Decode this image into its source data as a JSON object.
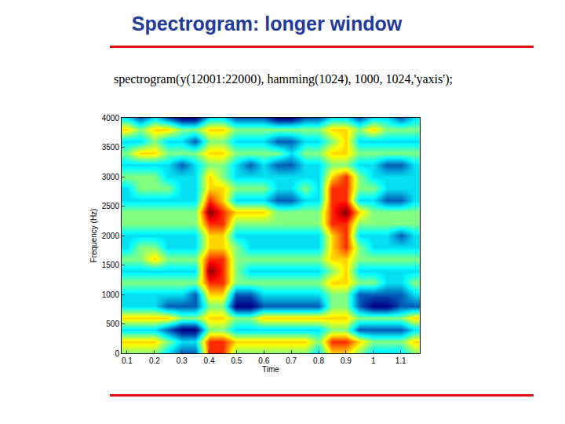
{
  "slide": {
    "title": "Spectrogram: longer window",
    "caption": "spectrogram(y(12001:22000), hamming(1024), 1000, 1024,'yaxis');"
  },
  "chart_data": {
    "type": "heatmap",
    "x_label": "Time",
    "y_label": "Frequency (Hz)",
    "xlim": [
      0.08,
      1.17
    ],
    "xticks": [
      0.1,
      0.2,
      0.3,
      0.4,
      0.5,
      0.6,
      0.7,
      0.8,
      0.9,
      1,
      1.1
    ],
    "ylim": [
      0,
      4000
    ],
    "yticks": [
      0,
      500,
      1000,
      1500,
      2000,
      2500,
      3000,
      3500,
      4000
    ],
    "x": [
      0.1,
      0.15,
      0.2,
      0.25,
      0.3,
      0.35,
      0.4,
      0.45,
      0.5,
      0.55,
      0.6,
      0.65,
      0.7,
      0.75,
      0.8,
      0.85,
      0.9,
      0.95,
      1.0,
      1.05,
      1.1,
      1.15
    ],
    "y": [
      0,
      200,
      400,
      600,
      800,
      1000,
      1200,
      1400,
      1600,
      1800,
      2000,
      2200,
      2400,
      2600,
      2800,
      3000,
      3200,
      3400,
      3600,
      3800,
      4000
    ],
    "cells": [
      [
        7,
        7,
        7,
        6,
        5,
        5,
        9,
        9,
        7,
        7,
        7,
        7,
        7,
        7,
        6,
        8,
        8,
        7,
        6,
        6,
        6,
        7
      ],
      [
        8,
        8,
        8,
        7,
        6,
        6,
        9,
        9,
        8,
        8,
        8,
        8,
        8,
        8,
        7,
        9,
        9,
        8,
        7,
        7,
        7,
        8
      ],
      [
        6,
        6,
        6,
        5,
        4,
        4,
        7,
        7,
        6,
        6,
        6,
        6,
        6,
        6,
        6,
        7,
        7,
        5,
        5,
        5,
        5,
        6
      ],
      [
        8,
        8,
        8,
        8,
        7,
        7,
        8,
        8,
        7,
        7,
        8,
        8,
        8,
        8,
        8,
        8,
        8,
        7,
        7,
        7,
        7,
        8
      ],
      [
        6,
        6,
        6,
        5,
        5,
        5,
        7,
        7,
        4,
        4,
        5,
        5,
        5,
        5,
        5,
        7,
        7,
        5,
        4,
        4,
        5,
        5
      ],
      [
        6,
        6,
        6,
        6,
        6,
        5,
        8,
        8,
        5,
        5,
        6,
        6,
        6,
        6,
        6,
        7,
        7,
        5,
        5,
        5,
        5,
        6
      ],
      [
        7,
        7,
        7,
        7,
        7,
        7,
        9,
        9,
        7,
        7,
        7,
        7,
        7,
        7,
        7,
        8,
        8,
        7,
        7,
        6,
        6,
        7
      ],
      [
        6,
        6,
        6,
        6,
        6,
        6,
        10,
        9,
        7,
        6,
        6,
        6,
        6,
        6,
        6,
        7,
        8,
        6,
        6,
        6,
        6,
        6
      ],
      [
        7,
        7,
        8,
        7,
        7,
        7,
        9,
        9,
        7,
        7,
        7,
        7,
        7,
        7,
        7,
        8,
        8,
        7,
        7,
        7,
        7,
        7
      ],
      [
        6,
        7,
        7,
        6,
        6,
        6,
        8,
        8,
        7,
        6,
        6,
        6,
        6,
        6,
        6,
        8,
        9,
        7,
        6,
        6,
        6,
        6
      ],
      [
        6,
        6,
        6,
        6,
        6,
        6,
        8,
        8,
        6,
        6,
        6,
        6,
        6,
        6,
        6,
        8,
        9,
        6,
        6,
        6,
        5,
        6
      ],
      [
        7,
        7,
        7,
        7,
        7,
        7,
        9,
        9,
        7,
        7,
        7,
        7,
        7,
        7,
        7,
        9,
        9,
        7,
        7,
        7,
        7,
        7
      ],
      [
        7,
        7,
        7,
        7,
        7,
        7,
        10,
        9,
        8,
        8,
        8,
        7,
        7,
        7,
        7,
        9,
        10,
        8,
        7,
        7,
        7,
        7
      ],
      [
        6,
        6,
        6,
        6,
        6,
        6,
        9,
        8,
        6,
        6,
        6,
        5,
        5,
        6,
        6,
        9,
        9,
        6,
        6,
        5,
        5,
        6
      ],
      [
        6,
        7,
        7,
        7,
        6,
        6,
        8,
        8,
        7,
        7,
        7,
        6,
        6,
        7,
        6,
        9,
        9,
        7,
        7,
        6,
        6,
        6
      ],
      [
        7,
        7,
        7,
        6,
        6,
        6,
        8,
        7,
        6,
        6,
        6,
        6,
        6,
        6,
        6,
        8,
        9,
        7,
        6,
        6,
        6,
        6
      ],
      [
        6,
        6,
        6,
        6,
        5,
        6,
        7,
        7,
        6,
        5,
        6,
        5,
        5,
        6,
        6,
        7,
        7,
        6,
        6,
        5,
        5,
        6
      ],
      [
        7,
        8,
        8,
        7,
        7,
        7,
        8,
        8,
        7,
        7,
        7,
        7,
        6,
        7,
        7,
        8,
        8,
        7,
        7,
        7,
        7,
        7
      ],
      [
        6,
        6,
        7,
        6,
        6,
        5,
        7,
        7,
        6,
        6,
        6,
        5,
        5,
        6,
        6,
        7,
        8,
        6,
        6,
        6,
        6,
        6
      ],
      [
        8,
        7,
        8,
        8,
        7,
        7,
        8,
        8,
        7,
        7,
        7,
        7,
        7,
        7,
        7,
        8,
        8,
        7,
        8,
        7,
        7,
        7
      ],
      [
        6,
        5,
        6,
        5,
        4,
        4,
        6,
        6,
        5,
        5,
        5,
        4,
        4,
        5,
        5,
        6,
        6,
        5,
        6,
        6,
        5,
        6
      ]
    ]
  }
}
